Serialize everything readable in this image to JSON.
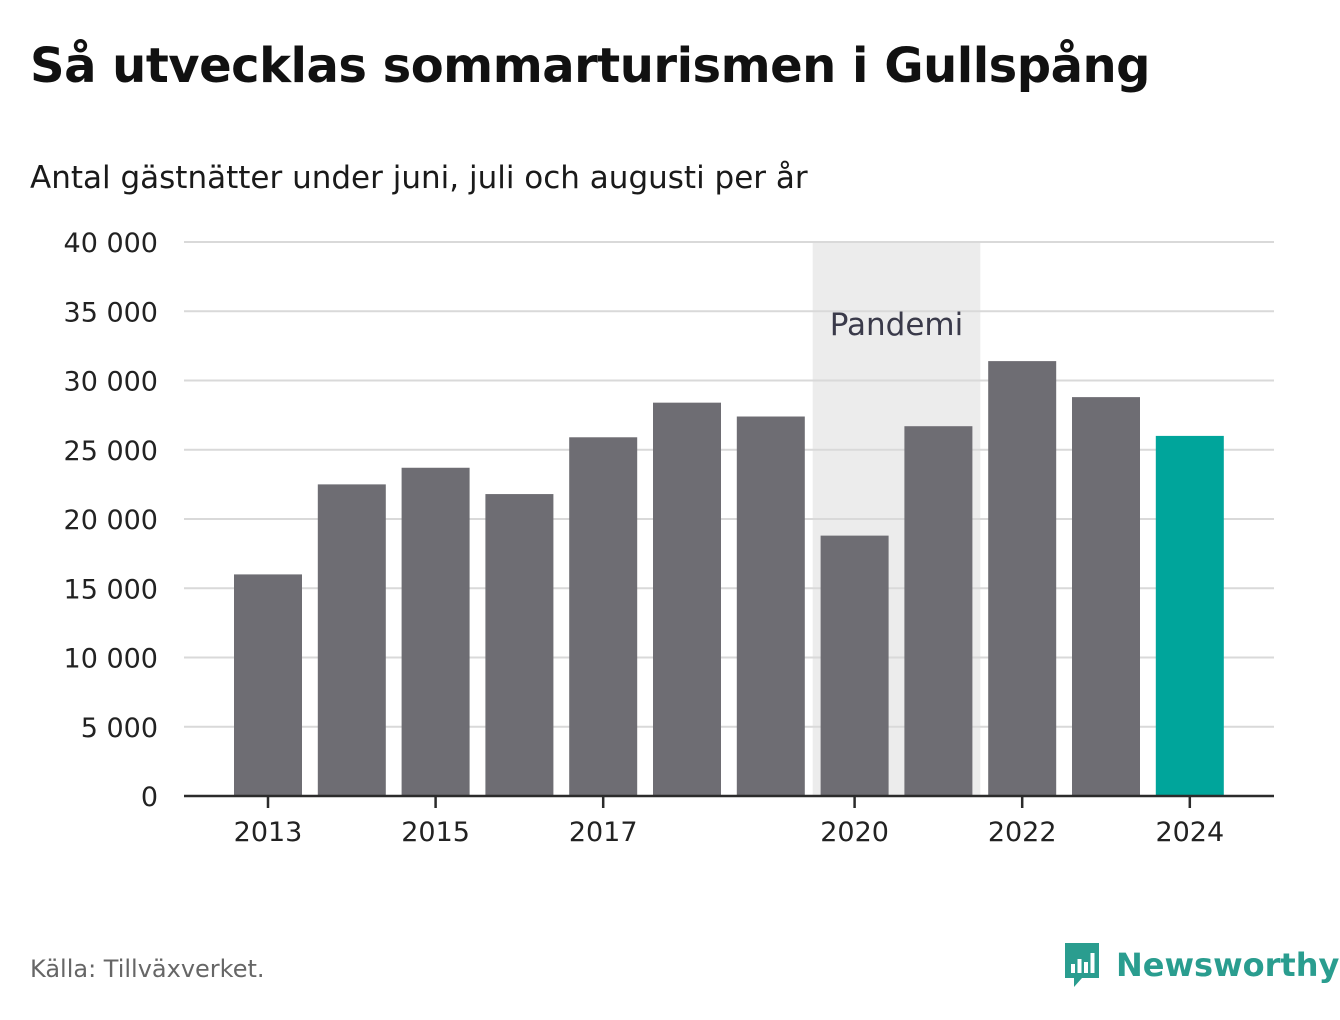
{
  "header": {
    "title": "Så utvecklas sommarturismen i Gullspång",
    "subtitle": "Antal gästnätter under juni, juli och augusti per år"
  },
  "footer": {
    "source": "Källa: Tillväxverket.",
    "brand": "Newsworthy"
  },
  "colors": {
    "bar": "#6e6d73",
    "highlight": "#00a59b",
    "shade": "#ececec",
    "grid": "#d9d9d9",
    "brand": "#2a9d8f"
  },
  "chart_data": {
    "type": "bar",
    "title": "Så utvecklas sommarturismen i Gullspång",
    "subtitle": "Antal gästnätter under juni, juli och augusti per år",
    "categories": [
      "2013",
      "2014",
      "2015",
      "2016",
      "2017",
      "2018",
      "2019",
      "2020",
      "2021",
      "2022",
      "2023",
      "2024"
    ],
    "values": [
      16000,
      22500,
      23700,
      21800,
      25900,
      28400,
      27400,
      18800,
      26700,
      31400,
      28800,
      26000
    ],
    "highlight_category": "2024",
    "x_tick_labels": [
      "2013",
      "2015",
      "2017",
      "2020",
      "2022",
      "2024"
    ],
    "y_tick_labels": [
      "0",
      "5 000",
      "10 000",
      "15 000",
      "20 000",
      "25 000",
      "30 000",
      "35 000",
      "40 000"
    ],
    "y_ticks": [
      0,
      5000,
      10000,
      15000,
      20000,
      25000,
      30000,
      35000,
      40000
    ],
    "ylim": [
      0,
      40000
    ],
    "grid": true,
    "annotation": {
      "label": "Pandemi",
      "from": "2020",
      "to": "2021"
    }
  }
}
